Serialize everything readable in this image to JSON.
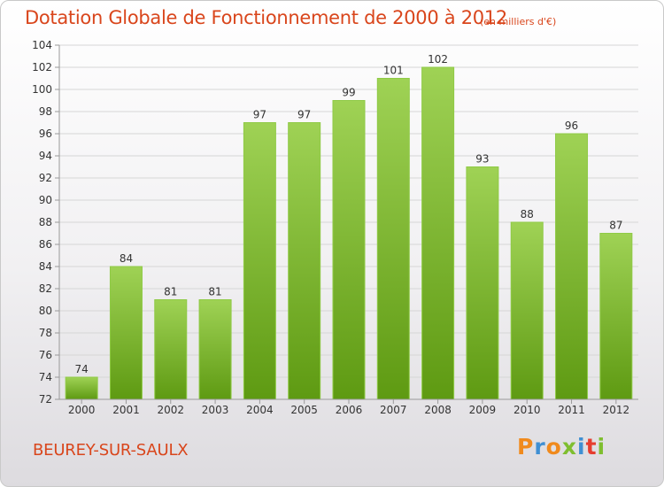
{
  "chart_data": {
    "type": "bar",
    "title": "Dotation Globale de Fonctionnement de 2000 à 2012",
    "subtitle": "(en milliers d'€)",
    "categories": [
      "2000",
      "2001",
      "2002",
      "2003",
      "2004",
      "2005",
      "2006",
      "2007",
      "2008",
      "2009",
      "2010",
      "2011",
      "2012"
    ],
    "values": [
      74,
      84,
      81,
      81,
      97,
      97,
      99,
      101,
      102,
      93,
      88,
      96,
      87
    ],
    "data_labels": [
      "74",
      "84",
      "81",
      "81",
      "97",
      "97",
      "99",
      "101",
      "102",
      "93",
      "88",
      "96",
      "87"
    ],
    "ylim": [
      72,
      104
    ],
    "yticks": [
      72,
      74,
      76,
      78,
      80,
      82,
      84,
      86,
      88,
      90,
      92,
      94,
      96,
      98,
      100,
      102,
      104
    ],
    "grid": true,
    "bar_color": "#7fbe2f"
  },
  "footer": {
    "commune": "BEUREY-SUR-SAULX",
    "logo_text": "Proxiti",
    "logo_letters": [
      "P",
      "r",
      "o",
      "x",
      "i",
      "t",
      "i"
    ],
    "logo_colors": [
      "#f08a1d",
      "#3f8fd3",
      "#f08a1d",
      "#7fbe2f",
      "#3f8fd3",
      "#e63d2f",
      "#7fbe2f"
    ]
  },
  "colors": {
    "title": "#d9461c",
    "grid": "#d6d6d6",
    "axis_text": "#333333"
  }
}
